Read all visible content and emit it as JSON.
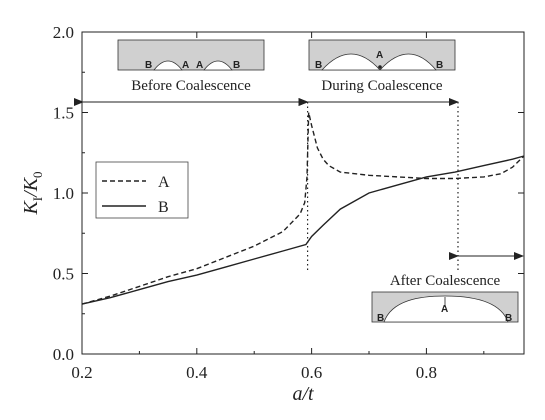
{
  "chart_data": {
    "type": "line",
    "xlabel": "a/t",
    "ylabel": "K_I/K_0",
    "xlim": [
      0.2,
      0.97
    ],
    "ylim": [
      0.0,
      2.0
    ],
    "x_ticks": [
      0.2,
      0.4,
      0.6,
      0.8
    ],
    "x_tick_labels": [
      "0.2",
      "0.4",
      "0.6",
      "0.8"
    ],
    "y_ticks": [
      0.0,
      0.5,
      1.0,
      1.5,
      2.0
    ],
    "y_tick_labels": [
      "0.0",
      "0.5",
      "1.0",
      "1.5",
      "2.0"
    ],
    "grid": false,
    "legend_position": "middle-left",
    "series": [
      {
        "name": "A",
        "style": "dashed",
        "color": "#222222",
        "x": [
          0.2,
          0.25,
          0.3,
          0.35,
          0.4,
          0.45,
          0.5,
          0.55,
          0.58,
          0.588,
          0.592,
          0.595,
          0.6,
          0.61,
          0.62,
          0.63,
          0.65,
          0.7,
          0.75,
          0.8,
          0.85,
          0.9,
          0.93,
          0.95,
          0.97
        ],
        "values": [
          0.31,
          0.36,
          0.42,
          0.48,
          0.53,
          0.6,
          0.67,
          0.76,
          0.87,
          0.94,
          1.1,
          1.5,
          1.42,
          1.28,
          1.21,
          1.17,
          1.13,
          1.11,
          1.1,
          1.09,
          1.09,
          1.1,
          1.12,
          1.16,
          1.23
        ]
      },
      {
        "name": "B",
        "style": "solid",
        "color": "#222222",
        "x": [
          0.2,
          0.25,
          0.3,
          0.35,
          0.4,
          0.45,
          0.5,
          0.55,
          0.59,
          0.6,
          0.62,
          0.65,
          0.7,
          0.75,
          0.8,
          0.85,
          0.9,
          0.95,
          0.97
        ],
        "values": [
          0.31,
          0.35,
          0.4,
          0.45,
          0.49,
          0.54,
          0.59,
          0.64,
          0.68,
          0.73,
          0.8,
          0.9,
          1.0,
          1.05,
          1.1,
          1.13,
          1.17,
          1.21,
          1.23
        ]
      }
    ],
    "vertical_markers": [
      0.593,
      0.855
    ],
    "annotations": {
      "before": "Before Coalescence",
      "during": "During Coalescence",
      "after": "After Coalescence"
    },
    "point_labels": {
      "a": "A",
      "b": "B"
    }
  }
}
